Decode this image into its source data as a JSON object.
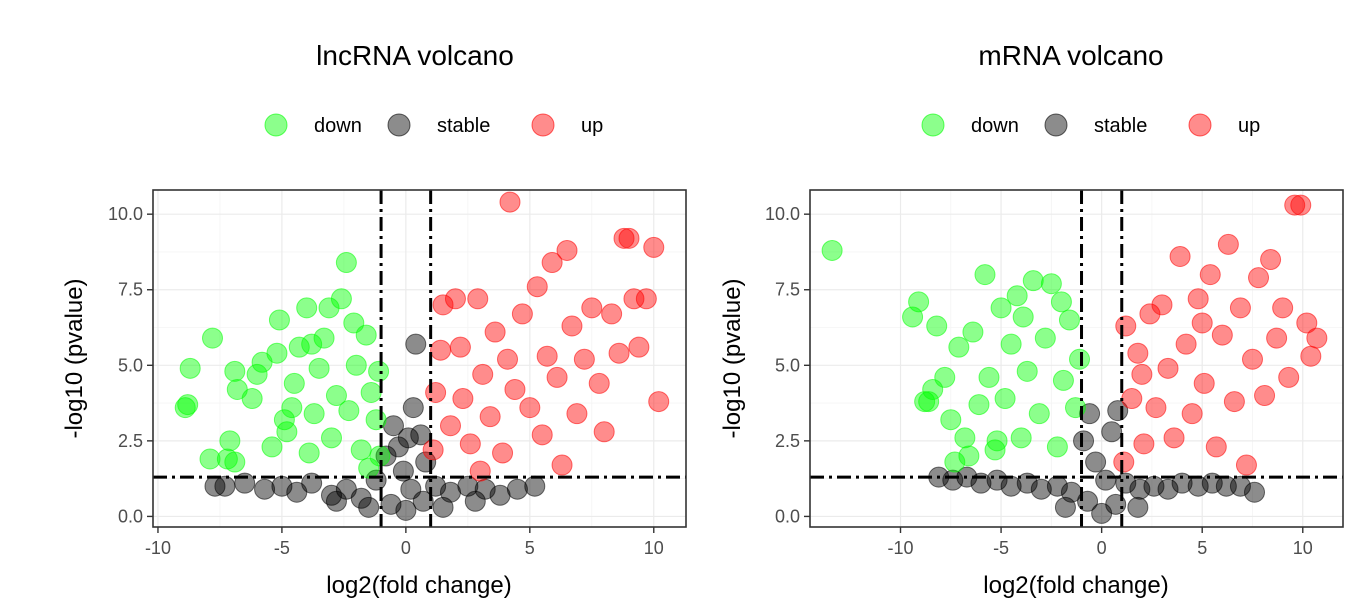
{
  "chart_data": [
    {
      "type": "scatter",
      "title": "lncRNA volcano",
      "xlabel": "log2(fold change)",
      "ylabel": "-log10 (pvalue)",
      "xlim": [
        -10.2,
        11.3
      ],
      "ylim": [
        -0.35,
        10.8
      ],
      "xticks": [
        -10,
        -5,
        0,
        5,
        10
      ],
      "xtick_labels": [
        "-10",
        "-5",
        "0",
        "5",
        "10"
      ],
      "yticks": [
        0,
        2.5,
        5,
        7.5,
        10
      ],
      "ytick_labels": [
        "0.0",
        "2.5",
        "5.0",
        "7.5",
        "10.0"
      ],
      "thresholds": {
        "x": [
          -1,
          1
        ],
        "y": 1.3
      },
      "grid": true,
      "legend_position": "top",
      "legend": [
        {
          "label": "down",
          "color": "#00ff00"
        },
        {
          "label": "stable",
          "color": "#000000"
        },
        {
          "label": "up",
          "color": "#ff0000"
        }
      ],
      "series": [
        {
          "name": "down",
          "color": "#00ff00",
          "points": [
            [
              -8.8,
              3.7
            ],
            [
              -8.9,
              3.6
            ],
            [
              -8.7,
              4.9
            ],
            [
              -7.8,
              5.9
            ],
            [
              -7.9,
              1.9
            ],
            [
              -7.2,
              1.9
            ],
            [
              -7.1,
              2.5
            ],
            [
              -6.9,
              4.8
            ],
            [
              -6.8,
              4.2
            ],
            [
              -6.9,
              1.8
            ],
            [
              -6.2,
              3.9
            ],
            [
              -6.0,
              4.7
            ],
            [
              -5.8,
              5.1
            ],
            [
              -5.4,
              2.3
            ],
            [
              -5.2,
              5.4
            ],
            [
              -5.1,
              6.5
            ],
            [
              -4.9,
              3.2
            ],
            [
              -4.8,
              2.8
            ],
            [
              -4.5,
              4.4
            ],
            [
              -4.3,
              5.6
            ],
            [
              -4.0,
              6.9
            ],
            [
              -3.9,
              2.1
            ],
            [
              -3.7,
              3.4
            ],
            [
              -3.5,
              4.9
            ],
            [
              -3.3,
              5.9
            ],
            [
              -3.1,
              6.9
            ],
            [
              -3.0,
              2.6
            ],
            [
              -2.8,
              4.0
            ],
            [
              -2.6,
              7.2
            ],
            [
              -2.4,
              8.4
            ],
            [
              -2.3,
              3.5
            ],
            [
              -2.0,
              5.0
            ],
            [
              -1.8,
              2.2
            ],
            [
              -1.6,
              6.0
            ],
            [
              -1.4,
              4.1
            ],
            [
              -1.2,
              3.2
            ],
            [
              -1.1,
              4.8
            ],
            [
              -1.05,
              2.0
            ],
            [
              -1.5,
              1.6
            ],
            [
              -2.1,
              6.4
            ],
            [
              -3.8,
              5.7
            ],
            [
              -4.6,
              3.6
            ]
          ]
        },
        {
          "name": "stable",
          "color": "#000000",
          "points": [
            [
              -7.7,
              1.0
            ],
            [
              -7.3,
              1.0
            ],
            [
              -6.5,
              1.1
            ],
            [
              -5.7,
              0.9
            ],
            [
              -5.0,
              1.0
            ],
            [
              -4.4,
              0.8
            ],
            [
              -3.8,
              1.1
            ],
            [
              -3.0,
              0.7
            ],
            [
              -2.4,
              0.9
            ],
            [
              -1.8,
              0.6
            ],
            [
              -1.2,
              1.2
            ],
            [
              -0.8,
              2.0
            ],
            [
              -0.5,
              3.0
            ],
            [
              -0.3,
              2.3
            ],
            [
              -0.1,
              1.5
            ],
            [
              0.0,
              0.2
            ],
            [
              0.2,
              0.9
            ],
            [
              0.3,
              3.6
            ],
            [
              0.4,
              5.7
            ],
            [
              0.6,
              2.7
            ],
            [
              0.8,
              1.8
            ],
            [
              1.2,
              1.0
            ],
            [
              1.8,
              0.8
            ],
            [
              2.5,
              1.0
            ],
            [
              3.2,
              0.9
            ],
            [
              3.8,
              0.7
            ],
            [
              4.5,
              0.9
            ],
            [
              5.2,
              1.0
            ],
            [
              -0.6,
              0.4
            ],
            [
              0.7,
              0.5
            ],
            [
              -1.5,
              0.3
            ],
            [
              1.5,
              0.3
            ],
            [
              -2.8,
              0.5
            ],
            [
              2.8,
              0.5
            ],
            [
              0.1,
              2.6
            ]
          ]
        },
        {
          "name": "up",
          "color": "#ff0000",
          "points": [
            [
              1.2,
              4.1
            ],
            [
              1.5,
              7.0
            ],
            [
              1.8,
              3.0
            ],
            [
              2.0,
              7.2
            ],
            [
              2.2,
              5.6
            ],
            [
              2.6,
              2.4
            ],
            [
              2.9,
              7.2
            ],
            [
              3.1,
              4.7
            ],
            [
              3.4,
              3.3
            ],
            [
              3.6,
              6.1
            ],
            [
              3.9,
              2.1
            ],
            [
              4.1,
              5.2
            ],
            [
              4.2,
              10.4
            ],
            [
              4.4,
              4.2
            ],
            [
              4.7,
              6.7
            ],
            [
              5.0,
              3.6
            ],
            [
              5.3,
              7.6
            ],
            [
              5.5,
              2.7
            ],
            [
              5.7,
              5.3
            ],
            [
              5.9,
              8.4
            ],
            [
              6.1,
              4.6
            ],
            [
              6.3,
              1.7
            ],
            [
              6.5,
              8.8
            ],
            [
              6.7,
              6.3
            ],
            [
              6.9,
              3.4
            ],
            [
              7.2,
              5.2
            ],
            [
              7.5,
              6.9
            ],
            [
              7.8,
              4.4
            ],
            [
              8.0,
              2.8
            ],
            [
              8.3,
              6.7
            ],
            [
              8.6,
              5.4
            ],
            [
              8.8,
              9.2
            ],
            [
              9.0,
              9.2
            ],
            [
              9.2,
              7.2
            ],
            [
              9.4,
              5.6
            ],
            [
              9.7,
              7.2
            ],
            [
              10.0,
              8.9
            ],
            [
              10.2,
              3.8
            ],
            [
              1.1,
              2.2
            ],
            [
              1.4,
              5.5
            ],
            [
              2.3,
              3.9
            ],
            [
              3.0,
              1.5
            ]
          ]
        }
      ]
    },
    {
      "type": "scatter",
      "title": "mRNA volcano",
      "xlabel": "log2(fold change)",
      "ylabel": "-log10 (pvalue)",
      "xlim": [
        -14.5,
        12.0
      ],
      "ylim": [
        -0.35,
        10.8
      ],
      "xticks": [
        -10,
        -5,
        0,
        5,
        10
      ],
      "xtick_labels": [
        "-10",
        "-5",
        "0",
        "5",
        "10"
      ],
      "yticks": [
        0,
        2.5,
        5,
        7.5,
        10
      ],
      "ytick_labels": [
        "0.0",
        "2.5",
        "5.0",
        "7.5",
        "10.0"
      ],
      "thresholds": {
        "x": [
          -1,
          1
        ],
        "y": 1.3
      },
      "grid": true,
      "legend_position": "top",
      "legend": [
        {
          "label": "down",
          "color": "#00ff00"
        },
        {
          "label": "stable",
          "color": "#000000"
        },
        {
          "label": "up",
          "color": "#ff0000"
        }
      ],
      "series": [
        {
          "name": "down",
          "color": "#00ff00",
          "points": [
            [
              -13.4,
              8.8
            ],
            [
              -9.4,
              6.6
            ],
            [
              -9.1,
              7.1
            ],
            [
              -8.8,
              3.8
            ],
            [
              -8.4,
              4.2
            ],
            [
              -8.2,
              6.3
            ],
            [
              -7.8,
              4.6
            ],
            [
              -7.5,
              3.2
            ],
            [
              -7.1,
              5.6
            ],
            [
              -6.8,
              2.6
            ],
            [
              -6.4,
              6.1
            ],
            [
              -6.1,
              3.7
            ],
            [
              -5.8,
              8.0
            ],
            [
              -5.6,
              4.6
            ],
            [
              -5.3,
              2.2
            ],
            [
              -5.0,
              6.9
            ],
            [
              -4.8,
              3.9
            ],
            [
              -4.5,
              5.7
            ],
            [
              -4.2,
              7.3
            ],
            [
              -4.0,
              2.6
            ],
            [
              -3.7,
              4.8
            ],
            [
              -3.4,
              7.8
            ],
            [
              -3.1,
              3.4
            ],
            [
              -2.8,
              5.9
            ],
            [
              -2.5,
              7.7
            ],
            [
              -2.2,
              2.3
            ],
            [
              -1.9,
              4.5
            ],
            [
              -1.6,
              6.5
            ],
            [
              -1.3,
              3.6
            ],
            [
              -1.1,
              5.2
            ],
            [
              -3.9,
              6.6
            ],
            [
              -2.0,
              7.1
            ],
            [
              -6.6,
              2.0
            ],
            [
              -7.3,
              1.8
            ],
            [
              -8.6,
              3.8
            ],
            [
              -5.2,
              2.5
            ]
          ]
        },
        {
          "name": "stable",
          "color": "#000000",
          "points": [
            [
              -8.1,
              1.3
            ],
            [
              -7.4,
              1.2
            ],
            [
              -6.7,
              1.3
            ],
            [
              -6.0,
              1.1
            ],
            [
              -5.2,
              1.2
            ],
            [
              -4.5,
              1.0
            ],
            [
              -3.7,
              1.1
            ],
            [
              -3.0,
              0.9
            ],
            [
              -2.2,
              1.0
            ],
            [
              -1.5,
              0.8
            ],
            [
              -0.9,
              2.5
            ],
            [
              -0.6,
              3.4
            ],
            [
              -0.3,
              1.8
            ],
            [
              0.0,
              0.1
            ],
            [
              0.2,
              1.2
            ],
            [
              0.5,
              2.8
            ],
            [
              0.8,
              3.5
            ],
            [
              1.2,
              1.1
            ],
            [
              1.9,
              0.9
            ],
            [
              2.6,
              1.0
            ],
            [
              3.3,
              0.9
            ],
            [
              4.0,
              1.1
            ],
            [
              4.8,
              1.0
            ],
            [
              5.5,
              1.1
            ],
            [
              6.2,
              1.0
            ],
            [
              6.9,
              1.0
            ],
            [
              7.6,
              0.8
            ],
            [
              -0.7,
              0.5
            ],
            [
              0.7,
              0.4
            ],
            [
              -1.8,
              0.3
            ],
            [
              1.8,
              0.3
            ]
          ]
        },
        {
          "name": "up",
          "color": "#ff0000",
          "points": [
            [
              1.2,
              6.3
            ],
            [
              1.5,
              3.9
            ],
            [
              1.8,
              5.4
            ],
            [
              2.1,
              2.4
            ],
            [
              2.4,
              6.7
            ],
            [
              2.7,
              3.6
            ],
            [
              3.0,
              7.0
            ],
            [
              3.3,
              4.9
            ],
            [
              3.6,
              2.6
            ],
            [
              3.9,
              8.6
            ],
            [
              4.2,
              5.7
            ],
            [
              4.5,
              3.4
            ],
            [
              4.8,
              7.2
            ],
            [
              5.1,
              4.4
            ],
            [
              5.4,
              8.0
            ],
            [
              5.7,
              2.3
            ],
            [
              6.0,
              6.0
            ],
            [
              6.3,
              9.0
            ],
            [
              6.6,
              3.8
            ],
            [
              6.9,
              6.9
            ],
            [
              7.2,
              1.7
            ],
            [
              7.5,
              5.2
            ],
            [
              7.8,
              7.9
            ],
            [
              8.1,
              4.0
            ],
            [
              8.4,
              8.5
            ],
            [
              8.7,
              5.9
            ],
            [
              9.0,
              6.9
            ],
            [
              9.3,
              4.6
            ],
            [
              9.6,
              10.3
            ],
            [
              9.9,
              10.3
            ],
            [
              10.2,
              6.4
            ],
            [
              10.4,
              5.3
            ],
            [
              10.7,
              5.9
            ],
            [
              1.1,
              1.8
            ],
            [
              2.0,
              4.7
            ],
            [
              5.0,
              6.4
            ]
          ]
        }
      ]
    }
  ]
}
